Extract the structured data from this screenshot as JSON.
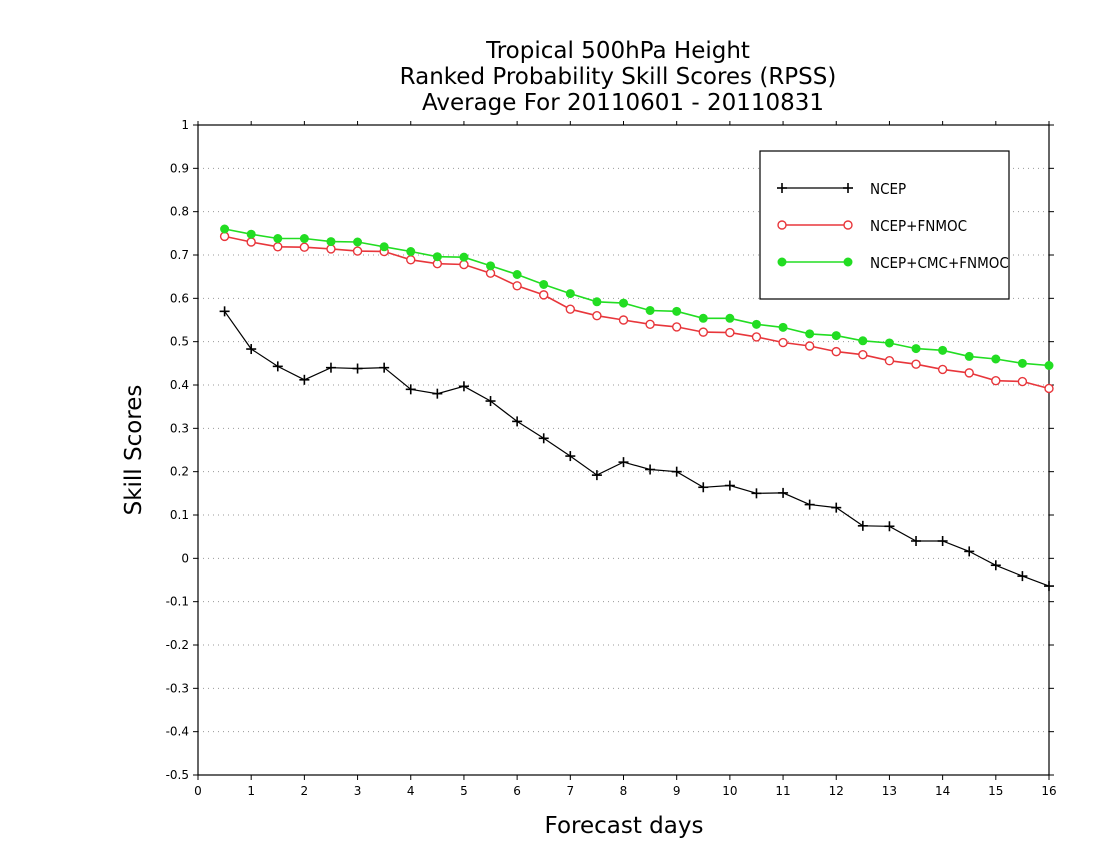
{
  "chart_data": {
    "type": "line",
    "title": [
      "Tropical 500hPa Height",
      "Ranked Probability Skill Scores (RPSS)",
      "Average For 20110601 - 20110831"
    ],
    "xlabel": "Forecast days",
    "ylabel": "Skill Scores",
    "xlim": [
      0,
      16
    ],
    "ylim": [
      -0.5,
      1
    ],
    "xticks": [
      0,
      1,
      2,
      3,
      4,
      5,
      6,
      7,
      8,
      9,
      10,
      11,
      12,
      13,
      14,
      15,
      16
    ],
    "yticks": [
      -0.5,
      -0.4,
      -0.3,
      -0.2,
      -0.1,
      0,
      0.1,
      0.2,
      0.3,
      0.4,
      0.5,
      0.6,
      0.7,
      0.8,
      0.9,
      1
    ],
    "ytick_labels": [
      "-0.5",
      "-0.4",
      "-0.3",
      "-0.2",
      "-0.1",
      "0",
      "0.1",
      "0.2",
      "0.3",
      "0.4",
      "0.5",
      "0.6",
      "0.7",
      "0.8",
      "0.9",
      "1"
    ],
    "grid": "horizontal dotted",
    "legend_position": "top-right",
    "x": [
      0.5,
      1,
      1.5,
      2,
      2.5,
      3,
      3.5,
      4,
      4.5,
      5,
      5.5,
      6,
      6.5,
      7,
      7.5,
      8,
      8.5,
      9,
      9.5,
      10,
      10.5,
      11,
      11.5,
      12,
      12.5,
      13,
      13.5,
      14,
      14.5,
      15,
      15.5,
      16
    ],
    "series": [
      {
        "name": "NCEP",
        "color": "#000000",
        "marker": "plus",
        "values": [
          0.57,
          0.483,
          0.443,
          0.412,
          0.44,
          0.438,
          0.44,
          0.39,
          0.38,
          0.397,
          0.363,
          0.316,
          0.277,
          0.236,
          0.192,
          0.222,
          0.205,
          0.2,
          0.164,
          0.168,
          0.15,
          0.151,
          0.124,
          0.117,
          0.075,
          0.074,
          0.04,
          0.04,
          0.016,
          -0.016,
          -0.041,
          -0.064
        ]
      },
      {
        "name": "NCEP+FNMOC",
        "color": "#e8363b",
        "marker": "open-circle",
        "values": [
          0.743,
          0.73,
          0.719,
          0.718,
          0.714,
          0.709,
          0.708,
          0.689,
          0.68,
          0.678,
          0.658,
          0.629,
          0.608,
          0.575,
          0.56,
          0.55,
          0.54,
          0.534,
          0.522,
          0.521,
          0.511,
          0.498,
          0.49,
          0.477,
          0.47,
          0.456,
          0.448,
          0.436,
          0.428,
          0.41,
          0.408,
          0.392
        ]
      },
      {
        "name": "NCEP+CMC+FNMOC",
        "color": "#22dd22",
        "marker": "filled-circle",
        "values": [
          0.76,
          0.748,
          0.738,
          0.738,
          0.731,
          0.73,
          0.719,
          0.708,
          0.696,
          0.695,
          0.675,
          0.655,
          0.632,
          0.611,
          0.592,
          0.589,
          0.572,
          0.57,
          0.554,
          0.554,
          0.54,
          0.533,
          0.518,
          0.514,
          0.502,
          0.497,
          0.484,
          0.48,
          0.466,
          0.46,
          0.45,
          0.445
        ]
      }
    ]
  }
}
